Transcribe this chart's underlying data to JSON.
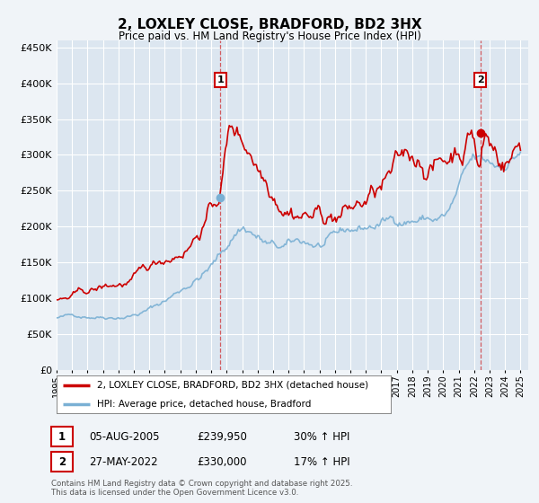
{
  "title": "2, LOXLEY CLOSE, BRADFORD, BD2 3HX",
  "subtitle": "Price paid vs. HM Land Registry's House Price Index (HPI)",
  "bg_color": "#f0f4f8",
  "plot_bg_color": "#dce6f0",
  "grid_color": "#ffffff",
  "line1_color": "#cc0000",
  "line2_color": "#7ab0d4",
  "ylim": [
    0,
    460000
  ],
  "yticks": [
    0,
    50000,
    100000,
    150000,
    200000,
    250000,
    300000,
    350000,
    400000,
    450000
  ],
  "year_start": 1995,
  "year_end": 2025,
  "legend_label1": "2, LOXLEY CLOSE, BRADFORD, BD2 3HX (detached house)",
  "legend_label2": "HPI: Average price, detached house, Bradford",
  "purchase1_date": "05-AUG-2005",
  "purchase1_price": 239950,
  "purchase1_hpi": "30%",
  "purchase1_year": 2005.6,
  "purchase1_label": "1",
  "purchase2_date": "27-MAY-2022",
  "purchase2_price": 330000,
  "purchase2_hpi": "17%",
  "purchase2_year": 2022.4,
  "purchase2_label": "2",
  "footer": "Contains HM Land Registry data © Crown copyright and database right 2025.\nThis data is licensed under the Open Government Licence v3.0."
}
